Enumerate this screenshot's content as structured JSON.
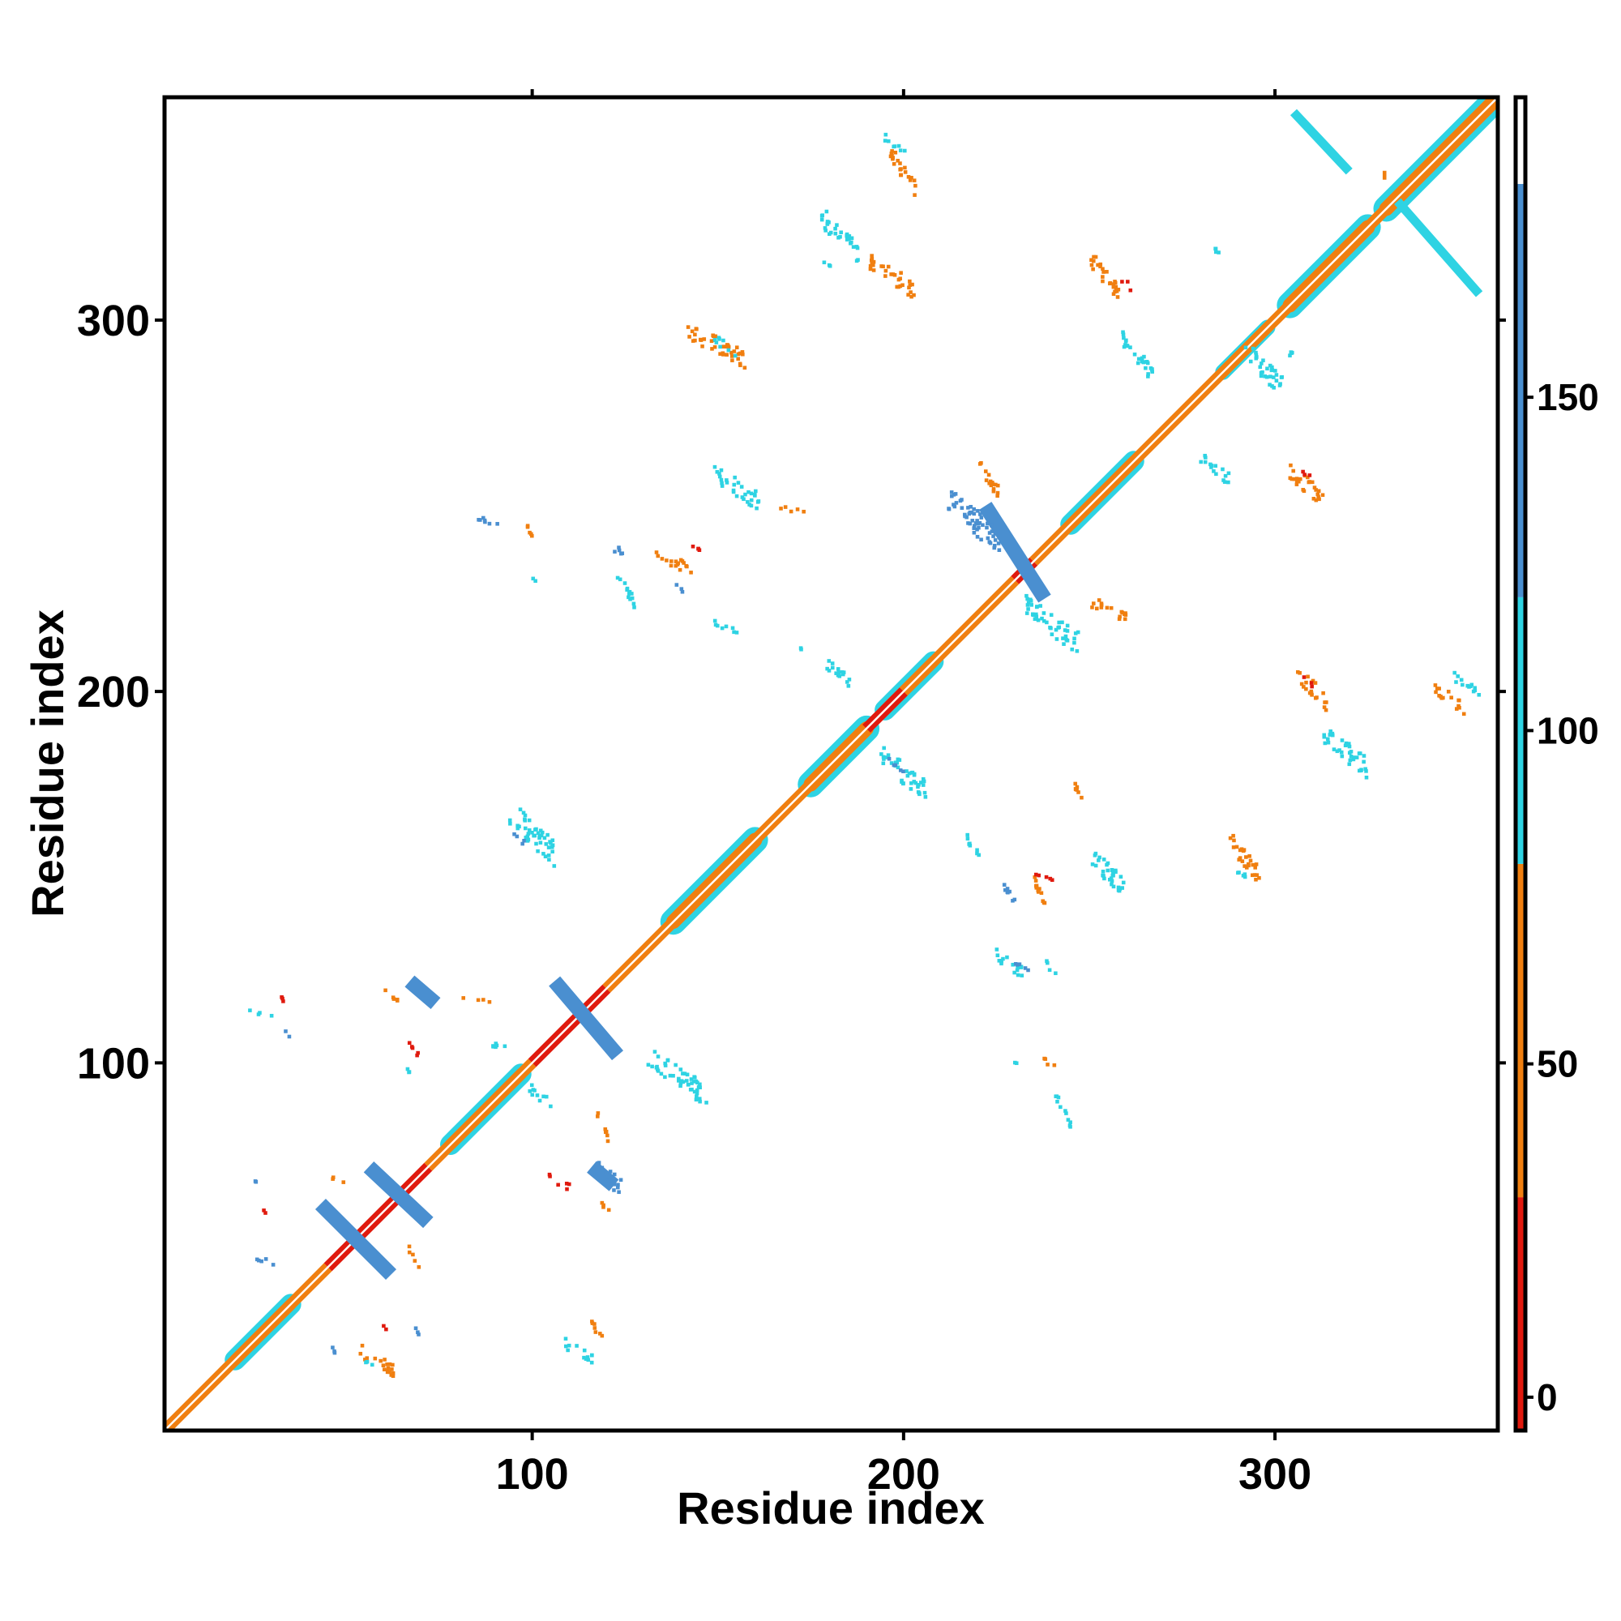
{
  "chart_data": {
    "type": "heatmap",
    "title": "",
    "xlabel": "Residue index",
    "ylabel": "Residue index",
    "xlim": [
      1,
      360
    ],
    "ylim": [
      1,
      360
    ],
    "x_ticks": [
      100,
      200,
      300
    ],
    "y_ticks": [
      100,
      200,
      300
    ],
    "grid": false,
    "colorbar": {
      "position": "right",
      "ticks": [
        0,
        50,
        100,
        150
      ],
      "range": [
        -5,
        195
      ],
      "bands": [
        {
          "from": -5,
          "to": 30,
          "color": "#e01a0e"
        },
        {
          "from": 30,
          "to": 80,
          "color": "#f07f10"
        },
        {
          "from": 80,
          "to": 120,
          "color": "#2ed3e3"
        },
        {
          "from": 120,
          "to": 182,
          "color": "#4a8fd0"
        },
        {
          "from": 182,
          "to": 195,
          "color": "#ffffff"
        }
      ]
    },
    "diagonal_segments": [
      {
        "from": 1,
        "to": 45,
        "color": "#f07f10"
      },
      {
        "from": 45,
        "to": 72,
        "color": "#e01a0e"
      },
      {
        "from": 72,
        "to": 100,
        "color": "#f07f10"
      },
      {
        "from": 100,
        "to": 120,
        "color": "#e01a0e"
      },
      {
        "from": 120,
        "to": 190,
        "color": "#f07f10"
      },
      {
        "from": 190,
        "to": 200,
        "color": "#e01a0e"
      },
      {
        "from": 200,
        "to": 230,
        "color": "#f07f10"
      },
      {
        "from": 230,
        "to": 235,
        "color": "#e01a0e"
      },
      {
        "from": 235,
        "to": 360,
        "color": "#f07f10"
      }
    ],
    "helix_bands": [
      {
        "from": 20,
        "to": 35,
        "width": 4
      },
      {
        "from": 78,
        "to": 97,
        "width": 4
      },
      {
        "from": 138,
        "to": 160,
        "width": 5
      },
      {
        "from": 175,
        "to": 190,
        "width": 5
      },
      {
        "from": 195,
        "to": 208,
        "width": 4
      },
      {
        "from": 245,
        "to": 262,
        "width": 4
      },
      {
        "from": 286,
        "to": 298,
        "width": 3
      },
      {
        "from": 304,
        "to": 325,
        "width": 5
      },
      {
        "from": 330,
        "to": 358,
        "width": 5
      }
    ],
    "contact_lines": [
      {
        "x1": 43,
        "y1": 62,
        "x2": 62,
        "y2": 43,
        "color": "#4a8fd0",
        "w": 2.5
      },
      {
        "x1": 56,
        "y1": 72,
        "x2": 72,
        "y2": 57,
        "color": "#4a8fd0",
        "w": 2.5
      },
      {
        "x1": 106,
        "y1": 122,
        "x2": 123,
        "y2": 102,
        "color": "#4a8fd0",
        "w": 2.5
      },
      {
        "x1": 222,
        "y1": 250,
        "x2": 238,
        "y2": 225,
        "color": "#4a8fd0",
        "w": 2.5
      },
      {
        "x1": 67,
        "y1": 122,
        "x2": 74,
        "y2": 116,
        "color": "#4a8fd0",
        "w": 2.5
      },
      {
        "x1": 116,
        "y1": 72,
        "x2": 122,
        "y2": 67,
        "color": "#4a8fd0",
        "w": 2.5
      },
      {
        "x1": 305,
        "y1": 356,
        "x2": 320,
        "y2": 340,
        "color": "#2ed3e3",
        "w": 1.5
      },
      {
        "x1": 333,
        "y1": 332,
        "x2": 355,
        "y2": 307,
        "color": "#2ed3e3",
        "w": 1.5
      },
      {
        "x1": 329,
        "y1": 339,
        "x2": 330,
        "y2": 339,
        "color": "#f07f10",
        "w": 1.5
      }
    ],
    "contact_clusters": [
      {
        "x": 28,
        "y": 113,
        "color": "#2ed3e3",
        "w": 8,
        "h": 1.5
      },
      {
        "x": 32,
        "y": 118,
        "color": "#e01a0e",
        "w": 3,
        "h": 3
      },
      {
        "x": 34,
        "y": 108,
        "color": "#4a8fd0",
        "w": 3,
        "h": 2
      },
      {
        "x": 62,
        "y": 118,
        "color": "#f07f10",
        "w": 4,
        "h": 4
      },
      {
        "x": 68,
        "y": 104,
        "color": "#e01a0e",
        "w": 3,
        "h": 5
      },
      {
        "x": 85,
        "y": 117,
        "color": "#f07f10",
        "w": 8,
        "h": 1.5
      },
      {
        "x": 27,
        "y": 47,
        "color": "#4a8fd0",
        "w": 8,
        "h": 2
      },
      {
        "x": 26,
        "y": 68,
        "color": "#4a8fd0",
        "w": 4,
        "h": 1.5
      },
      {
        "x": 28,
        "y": 60,
        "color": "#e01a0e",
        "w": 1.5,
        "h": 1.5
      },
      {
        "x": 46,
        "y": 24,
        "color": "#4a8fd0",
        "w": 2,
        "h": 5
      },
      {
        "x": 60,
        "y": 29,
        "color": "#e01a0e",
        "w": 1.5,
        "h": 1.5
      },
      {
        "x": 69,
        "y": 28,
        "color": "#4a8fd0",
        "w": 2,
        "h": 4
      },
      {
        "x": 48,
        "y": 68,
        "color": "#f07f10",
        "w": 4,
        "h": 2
      },
      {
        "x": 68,
        "y": 48,
        "color": "#f07f10",
        "w": 3,
        "h": 5
      },
      {
        "x": 113,
        "y": 22,
        "color": "#2ed3e3",
        "w": 8,
        "h": 5
      },
      {
        "x": 118,
        "y": 27,
        "color": "#f07f10",
        "w": 4,
        "h": 5
      },
      {
        "x": 107,
        "y": 68,
        "color": "#e01a0e",
        "w": 6,
        "h": 3
      },
      {
        "x": 120,
        "y": 70,
        "color": "#4a8fd0",
        "w": 8,
        "h": 8
      },
      {
        "x": 120,
        "y": 61,
        "color": "#f07f10",
        "w": 4,
        "h": 3
      },
      {
        "x": 119,
        "y": 83,
        "color": "#f07f10",
        "w": 3,
        "h": 7
      },
      {
        "x": 92,
        "y": 104,
        "color": "#2ed3e3",
        "w": 6,
        "h": 3
      },
      {
        "x": 102,
        "y": 91,
        "color": "#2ed3e3",
        "w": 6,
        "h": 5
      },
      {
        "x": 100,
        "y": 162,
        "color": "#2ed3e3",
        "w": 12,
        "h": 12
      },
      {
        "x": 97,
        "y": 160,
        "color": "#4a8fd0",
        "w": 4,
        "h": 3
      },
      {
        "x": 58,
        "y": 20,
        "color": "#f07f10",
        "w": 10,
        "h": 6
      },
      {
        "x": 57,
        "y": 19,
        "color": "#2ed3e3",
        "w": 4,
        "h": 2
      },
      {
        "x": 60,
        "y": 100,
        "color": "#ffffff",
        "w": 0.1,
        "h": 0.1
      },
      {
        "x": 66,
        "y": 98,
        "color": "#2ed3e3",
        "w": 4,
        "h": 2
      },
      {
        "x": 140,
        "y": 96,
        "color": "#2ed3e3",
        "w": 14,
        "h": 10
      },
      {
        "x": 132,
        "y": 99,
        "color": "#2ed3e3",
        "w": 4,
        "h": 2
      },
      {
        "x": 88,
        "y": 246,
        "color": "#4a8fd0",
        "w": 7,
        "h": 3
      },
      {
        "x": 100,
        "y": 242,
        "color": "#f07f10",
        "w": 3,
        "h": 5
      },
      {
        "x": 101,
        "y": 230,
        "color": "#2ed3e3",
        "w": 2,
        "h": 2
      },
      {
        "x": 125,
        "y": 228,
        "color": "#2ed3e3",
        "w": 5,
        "h": 8
      },
      {
        "x": 123,
        "y": 238,
        "color": "#4a8fd0",
        "w": 4,
        "h": 4
      },
      {
        "x": 138,
        "y": 235,
        "color": "#f07f10",
        "w": 10,
        "h": 5
      },
      {
        "x": 145,
        "y": 238,
        "color": "#e01a0e",
        "w": 4,
        "h": 3
      },
      {
        "x": 139,
        "y": 228,
        "color": "#4a8fd0",
        "w": 3,
        "h": 3
      },
      {
        "x": 153,
        "y": 217,
        "color": "#2ed3e3",
        "w": 8,
        "h": 3
      },
      {
        "x": 155,
        "y": 255,
        "color": "#2ed3e3",
        "w": 12,
        "h": 8
      },
      {
        "x": 170,
        "y": 249,
        "color": "#f07f10",
        "w": 8,
        "h": 2
      },
      {
        "x": 173,
        "y": 211,
        "color": "#2ed3e3",
        "w": 1.5,
        "h": 1.5
      },
      {
        "x": 182,
        "y": 205,
        "color": "#2ed3e3",
        "w": 8,
        "h": 6
      },
      {
        "x": 200,
        "y": 340,
        "color": "#f07f10",
        "w": 7,
        "h": 10
      },
      {
        "x": 198,
        "y": 347,
        "color": "#2ed3e3",
        "w": 6,
        "h": 4
      },
      {
        "x": 183,
        "y": 323,
        "color": "#2ed3e3",
        "w": 10,
        "h": 10
      },
      {
        "x": 179,
        "y": 316,
        "color": "#2ed3e3",
        "w": 3,
        "h": 3
      },
      {
        "x": 197,
        "y": 312,
        "color": "#f07f10",
        "w": 12,
        "h": 8
      },
      {
        "x": 150,
        "y": 293,
        "color": "#f07f10",
        "w": 16,
        "h": 8
      },
      {
        "x": 152,
        "y": 293,
        "color": "#2ed3e3",
        "w": 6,
        "h": 4
      },
      {
        "x": 200,
        "y": 178,
        "color": "#2ed3e3",
        "w": 12,
        "h": 10
      },
      {
        "x": 198,
        "y": 180,
        "color": "#4a8fd0",
        "w": 4,
        "h": 4
      },
      {
        "x": 219,
        "y": 246,
        "color": "#4a8fd0",
        "w": 14,
        "h": 12
      },
      {
        "x": 223,
        "y": 257,
        "color": "#f07f10",
        "w": 6,
        "h": 8
      },
      {
        "x": 240,
        "y": 218,
        "color": "#2ed3e3",
        "w": 14,
        "h": 10
      },
      {
        "x": 255,
        "y": 222,
        "color": "#f07f10",
        "w": 10,
        "h": 5
      },
      {
        "x": 219,
        "y": 158,
        "color": "#2ed3e3",
        "w": 4,
        "h": 6
      },
      {
        "x": 229,
        "y": 145,
        "color": "#4a8fd0",
        "w": 4,
        "h": 6
      },
      {
        "x": 237,
        "y": 145,
        "color": "#f07f10",
        "w": 4,
        "h": 10
      },
      {
        "x": 238,
        "y": 150,
        "color": "#e01a0e",
        "w": 5,
        "h": 3
      },
      {
        "x": 228,
        "y": 127,
        "color": "#2ed3e3",
        "w": 8,
        "h": 6
      },
      {
        "x": 232,
        "y": 126,
        "color": "#4a8fd0",
        "w": 5,
        "h": 3
      },
      {
        "x": 240,
        "y": 125,
        "color": "#2ed3e3",
        "w": 3,
        "h": 4
      },
      {
        "x": 239,
        "y": 100,
        "color": "#f07f10",
        "w": 4,
        "h": 3
      },
      {
        "x": 230,
        "y": 100,
        "color": "#2ed3e3",
        "w": 2,
        "h": 2
      },
      {
        "x": 243,
        "y": 87,
        "color": "#2ed3e3",
        "w": 4,
        "h": 8
      },
      {
        "x": 247,
        "y": 173,
        "color": "#f07f10",
        "w": 3,
        "h": 7
      },
      {
        "x": 255,
        "y": 151,
        "color": "#2ed3e3",
        "w": 10,
        "h": 10
      },
      {
        "x": 254,
        "y": 312,
        "color": "#f07f10",
        "w": 8,
        "h": 10
      },
      {
        "x": 260,
        "y": 310,
        "color": "#e01a0e",
        "w": 3,
        "h": 3
      },
      {
        "x": 263,
        "y": 290,
        "color": "#2ed3e3",
        "w": 8,
        "h": 10
      },
      {
        "x": 292,
        "y": 155,
        "color": "#f07f10",
        "w": 8,
        "h": 10
      },
      {
        "x": 292,
        "y": 150,
        "color": "#2ed3e3",
        "w": 4,
        "h": 4
      },
      {
        "x": 285,
        "y": 318,
        "color": "#2ed3e3",
        "w": 4,
        "h": 3
      },
      {
        "x": 297,
        "y": 287,
        "color": "#2ed3e3",
        "w": 10,
        "h": 10
      },
      {
        "x": 305,
        "y": 290,
        "color": "#2ed3e3",
        "w": 3,
        "h": 4
      },
      {
        "x": 284,
        "y": 260,
        "color": "#2ed3e3",
        "w": 8,
        "h": 6
      },
      {
        "x": 308,
        "y": 256,
        "color": "#f07f10",
        "w": 10,
        "h": 8
      },
      {
        "x": 309,
        "y": 258,
        "color": "#e01a0e",
        "w": 3,
        "h": 3
      },
      {
        "x": 310,
        "y": 201,
        "color": "#f07f10",
        "w": 8,
        "h": 8
      },
      {
        "x": 309,
        "y": 203,
        "color": "#e01a0e",
        "w": 3,
        "h": 3
      },
      {
        "x": 319,
        "y": 184,
        "color": "#2ed3e3",
        "w": 12,
        "h": 10
      },
      {
        "x": 347,
        "y": 198,
        "color": "#f07f10",
        "w": 8,
        "h": 6
      },
      {
        "x": 352,
        "y": 202,
        "color": "#2ed3e3",
        "w": 8,
        "h": 5
      }
    ]
  }
}
